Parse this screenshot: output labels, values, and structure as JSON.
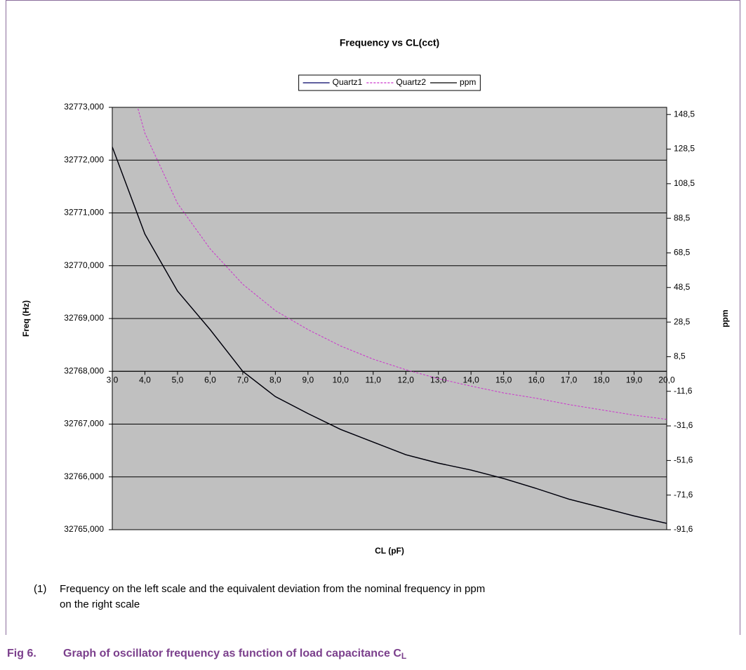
{
  "chart_data": {
    "type": "line",
    "title": "Frequency vs CL(cct)",
    "x_label": "CL (pF)",
    "y_label": "Freq (Hz)",
    "y2_label": "ppm",
    "x": [
      3,
      4,
      5,
      6,
      7,
      8,
      9,
      10,
      11,
      12,
      13,
      14,
      15,
      16,
      17,
      18,
      19,
      20
    ],
    "series": [
      {
        "name": "Quartz1",
        "color": "#000066",
        "dash": false,
        "values": [
          32772.25,
          32770.6,
          32769.52,
          32768.79,
          32768.0,
          32767.52,
          32767.2,
          32766.9,
          32766.66,
          32766.42,
          32766.26,
          32766.13,
          32765.97,
          32765.78,
          32765.58,
          32765.42,
          32765.26,
          32765.12
        ]
      },
      {
        "name": "Quartz2",
        "color": "#cc33cc",
        "dash": true,
        "values": [
          32774.7,
          32772.51,
          32771.18,
          32770.32,
          32769.65,
          32769.15,
          32768.79,
          32768.48,
          32768.23,
          32768.03,
          32767.86,
          32767.72,
          32767.59,
          32767.49,
          32767.37,
          32767.27,
          32767.17,
          32767.09
        ]
      },
      {
        "name": "ppm",
        "color": "#000000",
        "dash": false,
        "axis": "y2",
        "values": [
          129.7,
          79.3,
          46.4,
          24.1,
          0,
          -14.6,
          -24.4,
          -33.6,
          -40.9,
          -48.2,
          -53.1,
          -57.1,
          -62.0,
          -67.7,
          -73.9,
          -78.7,
          -83.6,
          -87.9
        ]
      }
    ],
    "xlim": [
      3,
      20
    ],
    "xticks": [
      {
        "value": 3,
        "label": "3,0"
      },
      {
        "value": 4,
        "label": "4,0"
      },
      {
        "value": 5,
        "label": "5,0"
      },
      {
        "value": 6,
        "label": "6,0"
      },
      {
        "value": 7,
        "label": "7,0"
      },
      {
        "value": 8,
        "label": "8,0"
      },
      {
        "value": 9,
        "label": "9,0"
      },
      {
        "value": 10,
        "label": "10,0"
      },
      {
        "value": 11,
        "label": "11,0"
      },
      {
        "value": 12,
        "label": "12,0"
      },
      {
        "value": 13,
        "label": "13,0"
      },
      {
        "value": 14,
        "label": "14,0"
      },
      {
        "value": 15,
        "label": "15,0"
      },
      {
        "value": 16,
        "label": "16,0"
      },
      {
        "value": 17,
        "label": "17,0"
      },
      {
        "value": 18,
        "label": "18,0"
      },
      {
        "value": 19,
        "label": "19,0"
      },
      {
        "value": 20,
        "label": "20,0"
      }
    ],
    "ylim": [
      32765,
      32773
    ],
    "yticks": [
      {
        "value": 32765,
        "label": "32765,000"
      },
      {
        "value": 32766,
        "label": "32766,000"
      },
      {
        "value": 32767,
        "label": "32767,000"
      },
      {
        "value": 32768,
        "label": "32768,000"
      },
      {
        "value": 32769,
        "label": "32769,000"
      },
      {
        "value": 32770,
        "label": "32770,000"
      },
      {
        "value": 32771,
        "label": "32771,000"
      },
      {
        "value": 32772,
        "label": "32772,000"
      },
      {
        "value": 32773,
        "label": "32773,000"
      }
    ],
    "y2lim": [
      -91.55,
      152.59
    ],
    "y2ticks": [
      {
        "value": -91.55,
        "label": "-91,6"
      },
      {
        "value": -71.55,
        "label": "-71,6"
      },
      {
        "value": -51.55,
        "label": "-51,6"
      },
      {
        "value": -31.55,
        "label": "-31,6"
      },
      {
        "value": -11.55,
        "label": "-11,6"
      },
      {
        "value": 8.45,
        "label": "8,5"
      },
      {
        "value": 28.45,
        "label": "28,5"
      },
      {
        "value": 48.45,
        "label": "48,5"
      },
      {
        "value": 68.45,
        "label": "68,5"
      },
      {
        "value": 88.45,
        "label": "88,5"
      },
      {
        "value": 108.45,
        "label": "108,5"
      },
      {
        "value": 128.45,
        "label": "128,5"
      },
      {
        "value": 148.45,
        "label": "148,5"
      }
    ],
    "x_axis_at": 32768,
    "grid": true,
    "legend": "top"
  },
  "note": {
    "marker": "(1)",
    "lines": [
      "Frequency on the left scale and the equivalent deviation from the nominal frequency in ppm",
      "on the right scale"
    ]
  },
  "caption": {
    "label": "Fig 6.",
    "text": "Graph of oscillator frequency as function of load capacitance C",
    "subscript": "L"
  }
}
